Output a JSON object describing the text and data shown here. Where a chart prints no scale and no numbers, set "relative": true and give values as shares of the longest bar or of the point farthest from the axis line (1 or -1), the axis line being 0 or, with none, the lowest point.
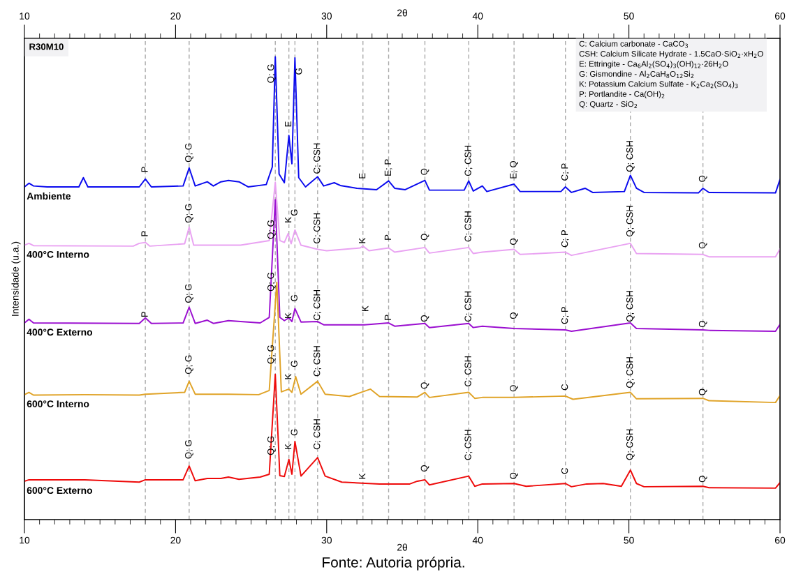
{
  "chart_data": {
    "type": "line",
    "relative": true,
    "xlabel": "2θ",
    "x2label": "2θ",
    "ylabel": "Intensidade (u.a.)",
    "xlim": [
      10,
      60
    ],
    "xticks": [
      10,
      20,
      30,
      40,
      50,
      60
    ],
    "x2lim": [
      10,
      60
    ],
    "x2ticks": [
      10,
      20,
      30,
      40,
      50,
      60
    ],
    "grid": false,
    "marker": "none",
    "line_style": "solid",
    "series": [
      {
        "name": "Ambiente",
        "color": "#0a0aee",
        "x": [
          10.0,
          10.3,
          10.6,
          11.5,
          13.6,
          13.9,
          14.2,
          17.6,
          18.0,
          18.4,
          20.5,
          20.9,
          21.3,
          22.1,
          22.5,
          23.0,
          23.5,
          24.2,
          24.8,
          26.0,
          26.4,
          26.6,
          26.85,
          27.2,
          27.5,
          27.7,
          27.9,
          28.15,
          28.6,
          29.4,
          29.8,
          30.5,
          30.9,
          32.0,
          33.3,
          34.1,
          34.5,
          35.2,
          36.5,
          36.8,
          39.1,
          39.4,
          39.7,
          40.3,
          40.6,
          42.4,
          42.8,
          45.5,
          45.8,
          46.2,
          47.1,
          47.6,
          49.7,
          50.1,
          50.5,
          51.0,
          54.6,
          54.9,
          55.3,
          59.7,
          60.0
        ],
        "values": [
          0.719,
          0.727,
          0.721,
          0.719,
          0.719,
          0.739,
          0.719,
          0.719,
          0.736,
          0.719,
          0.721,
          0.76,
          0.721,
          0.73,
          0.721,
          0.73,
          0.733,
          0.73,
          0.719,
          0.724,
          0.762,
          1.0,
          0.747,
          0.728,
          0.83,
          0.769,
          0.998,
          0.739,
          0.719,
          0.741,
          0.721,
          0.728,
          0.722,
          0.716,
          0.713,
          0.732,
          0.716,
          0.713,
          0.733,
          0.712,
          0.712,
          0.732,
          0.71,
          0.721,
          0.709,
          0.725,
          0.709,
          0.709,
          0.719,
          0.707,
          0.716,
          0.707,
          0.709,
          0.744,
          0.716,
          0.707,
          0.706,
          0.716,
          0.707,
          0.706,
          0.735
        ]
      },
      {
        "name": "400°C Interno",
        "color": "#e9a2f2",
        "x": [
          10.0,
          10.3,
          10.6,
          17.2,
          17.6,
          18.0,
          18.3,
          20.6,
          20.9,
          21.2,
          23.5,
          24.3,
          26.2,
          26.6,
          26.9,
          27.2,
          27.45,
          27.65,
          27.9,
          28.3,
          29.4,
          30.0,
          32.2,
          32.4,
          32.8,
          34.1,
          34.5,
          36.5,
          36.8,
          39.4,
          39.7,
          40.3,
          42.4,
          42.8,
          45.8,
          46.2,
          50.1,
          50.5,
          54.9,
          55.3,
          59.7,
          60.0
        ],
        "values": [
          0.593,
          0.597,
          0.592,
          0.591,
          0.597,
          0.599,
          0.591,
          0.596,
          0.632,
          0.593,
          0.593,
          0.593,
          0.603,
          0.729,
          0.603,
          0.599,
          0.618,
          0.596,
          0.626,
          0.593,
          0.584,
          0.581,
          0.587,
          0.591,
          0.581,
          0.587,
          0.578,
          0.588,
          0.576,
          0.588,
          0.575,
          0.578,
          0.584,
          0.573,
          0.578,
          0.571,
          0.597,
          0.575,
          0.573,
          0.568,
          0.568,
          0.585
        ]
      },
      {
        "name": "400°C Externo",
        "color": "#9b0fd0",
        "x": [
          10.0,
          10.3,
          10.6,
          17.6,
          18.0,
          18.4,
          20.5,
          20.9,
          21.3,
          22.1,
          22.5,
          23.5,
          24.3,
          25.6,
          26.2,
          26.6,
          26.9,
          27.2,
          27.5,
          27.7,
          27.9,
          28.3,
          29.4,
          29.8,
          32.5,
          34.1,
          34.5,
          36.5,
          36.8,
          39.4,
          39.7,
          40.3,
          42.4,
          45.8,
          46.2,
          50.1,
          50.5,
          54.9,
          55.3,
          59.7,
          60.0
        ],
        "values": [
          0.425,
          0.433,
          0.425,
          0.424,
          0.436,
          0.424,
          0.425,
          0.459,
          0.424,
          0.431,
          0.424,
          0.43,
          0.428,
          0.425,
          0.437,
          0.691,
          0.437,
          0.43,
          0.436,
          0.428,
          0.456,
          0.427,
          0.428,
          0.421,
          0.421,
          0.425,
          0.418,
          0.424,
          0.415,
          0.424,
          0.415,
          0.418,
          0.413,
          0.41,
          0.407,
          0.425,
          0.413,
          0.41,
          0.409,
          0.407,
          0.422
        ]
      },
      {
        "name": "600°C Interno",
        "color": "#e0a327",
        "x": [
          10.0,
          10.3,
          10.6,
          14.0,
          17.6,
          18.0,
          20.6,
          20.9,
          21.3,
          23.5,
          25.5,
          26.2,
          26.7,
          27.0,
          27.5,
          27.7,
          27.95,
          28.3,
          29.4,
          29.9,
          31.5,
          32.9,
          33.5,
          36.0,
          36.5,
          36.8,
          39.4,
          39.8,
          40.3,
          42.4,
          45.8,
          46.3,
          50.1,
          50.5,
          54.9,
          55.3,
          59.7,
          60.0
        ],
        "values": [
          0.27,
          0.275,
          0.269,
          0.27,
          0.269,
          0.271,
          0.275,
          0.299,
          0.271,
          0.271,
          0.27,
          0.279,
          0.513,
          0.276,
          0.282,
          0.275,
          0.309,
          0.271,
          0.299,
          0.271,
          0.266,
          0.282,
          0.266,
          0.265,
          0.275,
          0.264,
          0.275,
          0.262,
          0.264,
          0.264,
          0.267,
          0.26,
          0.275,
          0.261,
          0.262,
          0.257,
          0.253,
          0.268
        ]
      },
      {
        "name": "600°C Externo",
        "color": "#ee0a0a",
        "x": [
          10.0,
          10.3,
          14.0,
          17.6,
          18.0,
          20.5,
          20.9,
          21.3,
          22.1,
          23.0,
          23.5,
          24.2,
          25.6,
          26.2,
          26.6,
          26.9,
          27.2,
          27.5,
          27.7,
          27.9,
          28.3,
          29.4,
          29.9,
          31.0,
          33.5,
          35.5,
          36.0,
          36.5,
          36.8,
          39.4,
          39.8,
          40.3,
          42.4,
          43.2,
          45.8,
          46.2,
          47.2,
          48.3,
          49.5,
          50.1,
          50.5,
          51.0,
          54.9,
          55.3,
          59.7,
          60.0
        ],
        "values": [
          0.083,
          0.086,
          0.086,
          0.081,
          0.086,
          0.086,
          0.116,
          0.084,
          0.089,
          0.089,
          0.092,
          0.087,
          0.092,
          0.098,
          0.314,
          0.095,
          0.093,
          0.13,
          0.098,
          0.169,
          0.094,
          0.134,
          0.094,
          0.081,
          0.077,
          0.077,
          0.083,
          0.086,
          0.075,
          0.094,
          0.072,
          0.077,
          0.078,
          0.072,
          0.078,
          0.071,
          0.077,
          0.078,
          0.072,
          0.107,
          0.078,
          0.071,
          0.072,
          0.069,
          0.068,
          0.08
        ]
      }
    ],
    "ref_lines": [
      {
        "axis": "x",
        "value": 18.0,
        "color": "#aaaaaa",
        "line_style": "dashed"
      },
      {
        "axis": "x",
        "value": 20.9,
        "color": "#aaaaaa",
        "line_style": "dashed"
      },
      {
        "axis": "x",
        "value": 26.6,
        "color": "#aaaaaa",
        "line_style": "dashed"
      },
      {
        "axis": "x",
        "value": 27.5,
        "color": "#aaaaaa",
        "line_style": "dashed"
      },
      {
        "axis": "x",
        "value": 27.9,
        "color": "#aaaaaa",
        "line_style": "dashed"
      },
      {
        "axis": "x",
        "value": 29.4,
        "color": "#aaaaaa",
        "line_style": "dashed"
      },
      {
        "axis": "x",
        "value": 32.4,
        "color": "#aaaaaa",
        "line_style": "dashed"
      },
      {
        "axis": "x",
        "value": 34.1,
        "color": "#aaaaaa",
        "line_style": "dashed"
      },
      {
        "axis": "x",
        "value": 36.5,
        "color": "#aaaaaa",
        "line_style": "dashed"
      },
      {
        "axis": "x",
        "value": 39.4,
        "color": "#aaaaaa",
        "line_style": "dashed"
      },
      {
        "axis": "x",
        "value": 42.4,
        "color": "#aaaaaa",
        "line_style": "dashed"
      },
      {
        "axis": "x",
        "value": 45.8,
        "color": "#aaaaaa",
        "line_style": "dashed"
      },
      {
        "axis": "x",
        "value": 50.1,
        "color": "#aaaaaa",
        "line_style": "dashed"
      },
      {
        "axis": "x",
        "value": 54.9,
        "color": "#aaaaaa",
        "line_style": "dashed"
      }
    ],
    "annotations": [
      "R30M10",
      "C: Calcium carbonate - CaCO$_{3}$\nCSH: Calcium Silicate Hydrate - 1.5CaO·SiO$_{2}$·xH$_{2}$O\nE: Ettringite - Ca$_{6}$Al$_{2}$(SO$_{4}$)$_{3}$(OH)$_{12}$·26H$_{2}$O\nG: Gismondine - Al$_{2}$CaH$_{8}$O$_{12}$Si$_{2}$\nK: Potassium Calcium Sulfate - K$_{2}$Ca$_{2}$(SO$_{4}$)$_{3}$\nP: Portlandite - Ca(OH)$_{2}$\nQ: Quartz - SiO$_{2}$",
      "Fonte: Autoria própria.",
      {
        "text": "P",
        "x": 18.0,
        "y": 0.75
      },
      {
        "text": "Q; G",
        "x": 20.9,
        "y": 0.772
      },
      {
        "text": "Q; G",
        "x": 26.35,
        "y": 0.943
      },
      {
        "text": "E",
        "x": 27.5,
        "y": 0.848
      },
      {
        "text": "G",
        "x": 28.2,
        "y": 0.961
      },
      {
        "text": "C; CSH",
        "x": 29.4,
        "y": 0.747
      },
      {
        "text": "E",
        "x": 32.4,
        "y": 0.736
      },
      {
        "text": "E; P",
        "x": 34.1,
        "y": 0.742
      },
      {
        "text": "Q",
        "x": 36.5,
        "y": 0.744
      },
      {
        "text": "C; CSH",
        "x": 39.4,
        "y": 0.742
      },
      {
        "text": "E; Q",
        "x": 42.4,
        "y": 0.736
      },
      {
        "text": "C; P",
        "x": 45.8,
        "y": 0.732
      },
      {
        "text": "Q; CSH",
        "x": 50.1,
        "y": 0.751
      },
      {
        "text": "Q",
        "x": 54.9,
        "y": 0.729
      },
      {
        "text": "P",
        "x": 18.0,
        "y": 0.611
      },
      {
        "text": "Q; G",
        "x": 20.9,
        "y": 0.641
      },
      {
        "text": "Q; G",
        "x": 26.35,
        "y": 0.606
      },
      {
        "text": "K",
        "x": 27.5,
        "y": 0.641
      },
      {
        "text": "G",
        "x": 27.9,
        "y": 0.656
      },
      {
        "text": "C; CSH",
        "x": 29.4,
        "y": 0.596
      },
      {
        "text": "K",
        "x": 32.4,
        "y": 0.596
      },
      {
        "text": "P",
        "x": 34.1,
        "y": 0.603
      },
      {
        "text": "Q",
        "x": 36.5,
        "y": 0.603
      },
      {
        "text": "C; CSH",
        "x": 39.4,
        "y": 0.6
      },
      {
        "text": "Q",
        "x": 42.4,
        "y": 0.593
      },
      {
        "text": "C; P",
        "x": 45.8,
        "y": 0.588
      },
      {
        "text": "Q; CSH",
        "x": 50.1,
        "y": 0.611
      },
      {
        "text": "Q",
        "x": 54.9,
        "y": 0.585
      },
      {
        "text": "P",
        "x": 18.0,
        "y": 0.437
      },
      {
        "text": "Q; G",
        "x": 20.9,
        "y": 0.468
      },
      {
        "text": "Q; G",
        "x": 26.35,
        "y": 0.493
      },
      {
        "text": "K",
        "x": 27.5,
        "y": 0.434
      },
      {
        "text": "G",
        "x": 27.9,
        "y": 0.471
      },
      {
        "text": "C; CSH",
        "x": 29.4,
        "y": 0.43
      },
      {
        "text": "K",
        "x": 32.6,
        "y": 0.449
      },
      {
        "text": "P",
        "x": 34.1,
        "y": 0.43
      },
      {
        "text": "Q",
        "x": 36.5,
        "y": 0.427
      },
      {
        "text": "C; CSH",
        "x": 39.4,
        "y": 0.427
      },
      {
        "text": "Q",
        "x": 42.4,
        "y": 0.433
      },
      {
        "text": "C; P",
        "x": 45.8,
        "y": 0.422
      },
      {
        "text": "Q; CSH",
        "x": 50.1,
        "y": 0.427
      },
      {
        "text": "Q",
        "x": 54.9,
        "y": 0.415
      },
      {
        "text": "Q; G",
        "x": 20.9,
        "y": 0.314
      },
      {
        "text": "Q; G",
        "x": 26.35,
        "y": 0.336
      },
      {
        "text": "K",
        "x": 27.5,
        "y": 0.302
      },
      {
        "text": "G",
        "x": 27.9,
        "y": 0.329
      },
      {
        "text": "C; CSH",
        "x": 29.4,
        "y": 0.309
      },
      {
        "text": "Q",
        "x": 36.5,
        "y": 0.282
      },
      {
        "text": "C; CSH",
        "x": 39.4,
        "y": 0.287
      },
      {
        "text": "Q",
        "x": 42.4,
        "y": 0.276
      },
      {
        "text": "C",
        "x": 45.8,
        "y": 0.279
      },
      {
        "text": "Q; CSH",
        "x": 50.1,
        "y": 0.284
      },
      {
        "text": "Q",
        "x": 54.9,
        "y": 0.268
      },
      {
        "text": "Q; G",
        "x": 20.9,
        "y": 0.131
      },
      {
        "text": "Q; G",
        "x": 26.35,
        "y": 0.139
      },
      {
        "text": "K",
        "x": 27.5,
        "y": 0.151
      },
      {
        "text": "G",
        "x": 27.9,
        "y": 0.181
      },
      {
        "text": "C; CSH",
        "x": 29.4,
        "y": 0.151
      },
      {
        "text": "K",
        "x": 32.4,
        "y": 0.087
      },
      {
        "text": "Q",
        "x": 36.5,
        "y": 0.103
      },
      {
        "text": "C; CSH",
        "x": 39.4,
        "y": 0.128
      },
      {
        "text": "Q",
        "x": 42.4,
        "y": 0.087
      },
      {
        "text": "C",
        "x": 45.8,
        "y": 0.098
      },
      {
        "text": "Q; CSH",
        "x": 50.1,
        "y": 0.128
      },
      {
        "text": "Q",
        "x": 54.9,
        "y": 0.08
      }
    ]
  }
}
